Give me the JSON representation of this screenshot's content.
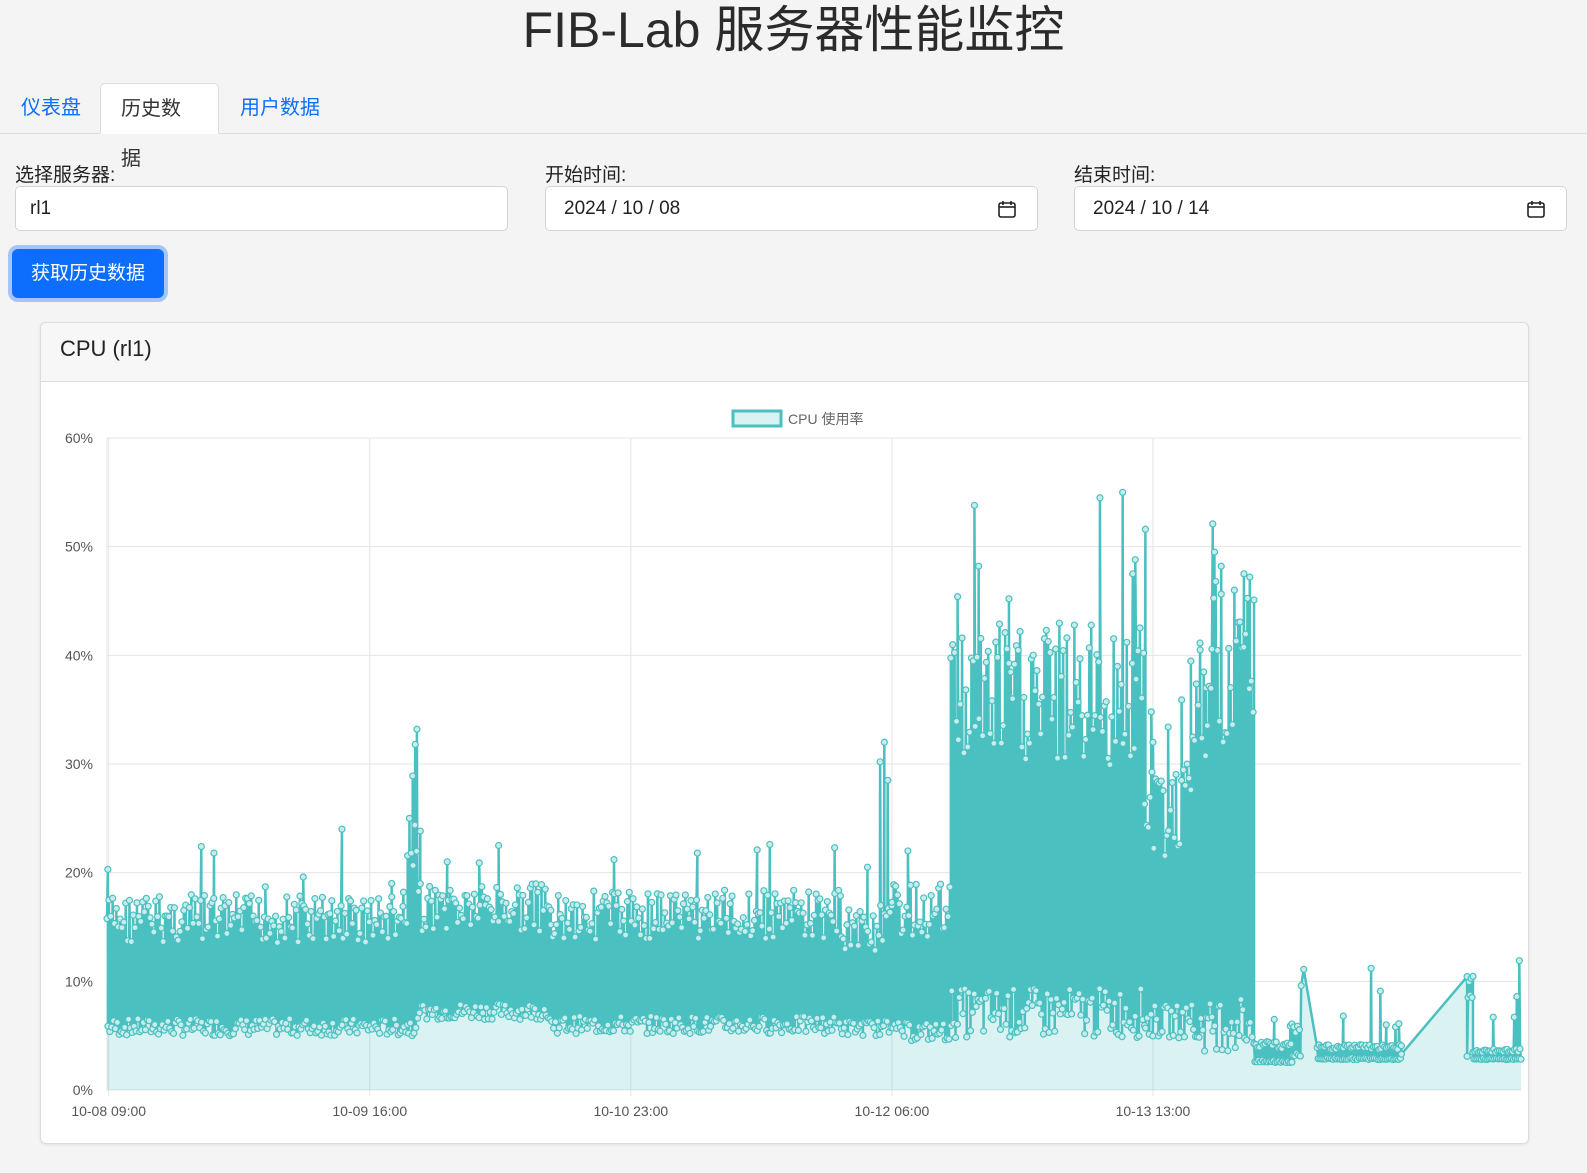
{
  "app": {
    "title": "FIB-Lab 服务器性能监控"
  },
  "tabs": [
    {
      "label": "仪表盘",
      "active": false
    },
    {
      "label": "历史数据",
      "active": true
    },
    {
      "label": "用户数据",
      "active": false
    }
  ],
  "filters": {
    "server_label": "选择服务器:",
    "server_value": "rl1",
    "start_label": "开始时间:",
    "start_value": "2024 / 10 / 08",
    "end_label": "结束时间:",
    "end_value": "2024 / 10 / 14",
    "fetch_button": "获取历史数据"
  },
  "card": {
    "title": "CPU (rl1)"
  },
  "colors": {
    "accent": "#0d6efd",
    "series": "#4bc0c0",
    "series_fill": "rgba(75,192,192,0.2)"
  },
  "chart_data": {
    "type": "area",
    "title": "",
    "xlabel": "",
    "ylabel": "",
    "ylim": [
      0,
      60
    ],
    "yticks": [
      "0%",
      "10%",
      "20%",
      "30%",
      "40%",
      "50%",
      "60%"
    ],
    "xticks": [
      "10-08 09:00",
      "10-09 16:00",
      "10-10 23:00",
      "10-12 06:00",
      "10-13 13:00"
    ],
    "x_unit_hours": true,
    "x_start": "10-08 09:00",
    "x_range_hours": [
      -0.2,
      167.7
    ],
    "grid": true,
    "legend_position": "top",
    "series": [
      {
        "name": "CPU 使用率",
        "segments": [
          {
            "x_start_hours": -0.2,
            "x_end_hours": 35.5,
            "low": 5,
            "high": 18,
            "spikes": [
              [
                -0.1,
                20.3
              ],
              [
                11.0,
                22.4
              ],
              [
                12.5,
                21.8
              ],
              [
                18.6,
                18.7
              ],
              [
                23.1,
                19.6
              ],
              [
                27.7,
                24.0
              ],
              [
                33.6,
                19.0
              ],
              [
                35.0,
                18.2
              ]
            ]
          },
          {
            "x_start_hours": 35.5,
            "x_end_hours": 37.0,
            "low": 5,
            "high": 25,
            "spikes": [
              [
                36.1,
                28.9
              ],
              [
                36.6,
                33.2
              ],
              [
                36.4,
                31.8
              ]
            ]
          },
          {
            "x_start_hours": 37.0,
            "x_end_hours": 52.5,
            "low": 6.5,
            "high": 19,
            "spikes": [
              [
                46.3,
                22.5
              ],
              [
                40.2,
                21.0
              ],
              [
                44.0,
                20.9
              ]
            ]
          },
          {
            "x_start_hours": 52.5,
            "x_end_hours": 87.0,
            "low": 5.2,
            "high": 18.5,
            "spikes": [
              [
                60.0,
                21.2
              ],
              [
                69.9,
                21.8
              ],
              [
                77.0,
                22.1
              ],
              [
                78.5,
                22.6
              ],
              [
                86.2,
                22.3
              ],
              [
                90.1,
                20.5
              ]
            ]
          },
          {
            "x_start_hours": 87.0,
            "x_end_hours": 93.0,
            "low": 5.0,
            "high": 17,
            "spikes": [
              [
                91.6,
                30.2
              ],
              [
                92.1,
                32.0
              ],
              [
                92.5,
                28.5
              ],
              [
                94.9,
                22.0
              ]
            ]
          },
          {
            "x_start_hours": 93.0,
            "x_end_hours": 100.0,
            "low": 4.5,
            "high": 19,
            "spikes": []
          },
          {
            "x_start_hours": 100.0,
            "x_end_hours": 123.0,
            "low": 4.8,
            "high": 43,
            "spikes": [
              [
                100.8,
                45.4
              ],
              [
                102.8,
                53.8
              ],
              [
                103.3,
                48.2
              ],
              [
                106.9,
                45.2
              ],
              [
                117.7,
                54.5
              ],
              [
                120.4,
                55.0
              ],
              [
                121.9,
                48.8
              ],
              [
                123.1,
                51.6
              ],
              [
                121.6,
                47.5
              ]
            ]
          },
          {
            "x_start_hours": 123.0,
            "x_end_hours": 128.5,
            "low": 4.8,
            "high": 30,
            "spikes": [
              [
                123.8,
                34.8
              ],
              [
                125.8,
                33.4
              ],
              [
                127.4,
                35.9
              ],
              [
                124.0,
                32.0
              ]
            ]
          },
          {
            "x_start_hours": 128.5,
            "x_end_hours": 131.0,
            "low": 3.5,
            "high": 42,
            "spikes": [
              [
                129.6,
                40.5
              ],
              [
                130.3,
                37.0
              ],
              [
                131.1,
                52.1
              ]
            ]
          },
          {
            "x_start_hours": 131.0,
            "x_end_hours": 136.0,
            "low": 3.6,
            "high": 47,
            "spikes": [
              [
                131.3,
                49.5
              ],
              [
                132.1,
                48.2
              ],
              [
                134.8,
                47.5
              ],
              [
                135.5,
                47.2
              ],
              [
                136.0,
                45.1
              ]
            ]
          },
          {
            "x_start_hours": 136.0,
            "x_end_hours": 140.5,
            "low": 2.5,
            "high": 4.5,
            "spikes": [
              [
                138.4,
                6.5
              ],
              [
                140.3,
                5.9
              ],
              [
                141.9,
                11.1
              ],
              [
                141.6,
                9.6
              ]
            ]
          },
          {
            "x_start_hours": 140.5,
            "x_end_hours": 141.5,
            "low": 3.0,
            "high": 6.5,
            "spikes": []
          },
          {
            "x_start_hours": 143.5,
            "x_end_hours": 153.5,
            "low": 2.8,
            "high": 4.2,
            "spikes": [
              [
                146.6,
                6.8
              ],
              [
                149.9,
                11.2
              ],
              [
                151.0,
                9.1
              ],
              [
                151.7,
                6.0
              ],
              [
                152.8,
                5.8
              ],
              [
                153.2,
                6.1
              ]
            ]
          },
          {
            "x_start_hours": 161.3,
            "x_end_hours": 162.0,
            "low": 8.5,
            "high": 10.5,
            "spikes": []
          },
          {
            "x_start_hours": 162.0,
            "x_end_hours": 167.7,
            "low": 2.8,
            "high": 3.8,
            "spikes": [
              [
                164.4,
                6.7
              ],
              [
                166.9,
                6.7
              ],
              [
                167.5,
                11.9
              ],
              [
                167.2,
                8.6
              ]
            ]
          }
        ],
        "gap_points": [
          [
            153.5,
            3.3
          ],
          [
            161.3,
            3.1
          ]
        ]
      }
    ]
  }
}
